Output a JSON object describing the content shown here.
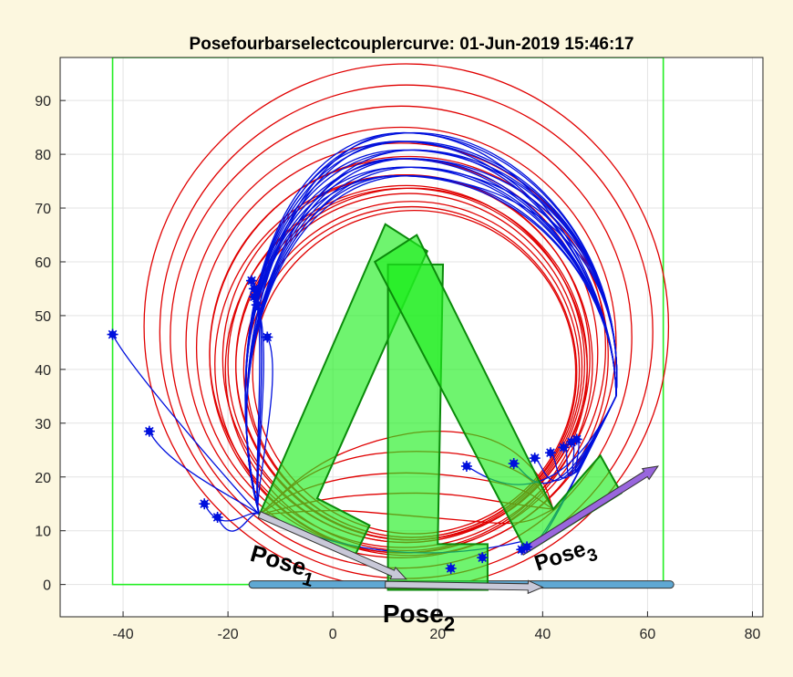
{
  "chart_data": {
    "type": "line",
    "title": "Posefourbarselectcouplercurve: 01-Jun-2019 15:46:17",
    "xlabel": "",
    "ylabel": "",
    "xlim": [
      -52,
      82
    ],
    "ylim": [
      -6,
      98
    ],
    "xticks": [
      -40,
      -20,
      0,
      20,
      40,
      60,
      80
    ],
    "yticks": [
      0,
      10,
      20,
      30,
      40,
      50,
      60,
      70,
      80,
      90
    ],
    "xtick_labels": [
      "-40",
      "-20",
      "0",
      "20",
      "40",
      "60",
      "80"
    ],
    "ytick_labels": [
      "0",
      "10",
      "20",
      "30",
      "40",
      "50",
      "60",
      "70",
      "80",
      "90"
    ],
    "grid": true,
    "colors": {
      "background": "#fcf7df",
      "axes": "#ffffff",
      "grid": "#e3e3e3",
      "coupler_red": "#e00000",
      "coupler_blue": "#0010dd",
      "pose_fill": "#22ee22",
      "pose_edge": "#0a8a0a",
      "boundary": "#22ee22",
      "arrow_fill": "#c8c8d8",
      "pose3_arrow_fill": "#9966dd",
      "bar": "#5fa8d3"
    },
    "boundary": {
      "x": [
        -42,
        63
      ],
      "y": [
        0,
        98
      ]
    },
    "red_circles": [
      {
        "cx": 14,
        "cy": 48,
        "r": 50
      },
      {
        "cx": 14,
        "cy": 47,
        "r": 47
      },
      {
        "cx": 13,
        "cy": 46,
        "r": 44
      },
      {
        "cx": 13,
        "cy": 45,
        "r": 41
      },
      {
        "cx": 13,
        "cy": 44,
        "r": 39
      },
      {
        "cx": 13.5,
        "cy": 43,
        "r": 37
      },
      {
        "cx": 14,
        "cy": 42,
        "r": 35
      },
      {
        "cx": 14,
        "cy": 41,
        "r": 34
      },
      {
        "cx": 14.5,
        "cy": 40.5,
        "r": 33
      },
      {
        "cx": 15,
        "cy": 40,
        "r": 32
      },
      {
        "cx": 15,
        "cy": 39.5,
        "r": 31.5
      },
      {
        "cx": 14,
        "cy": 40,
        "r": 34.5
      },
      {
        "cx": 13.5,
        "cy": 41,
        "r": 36
      },
      {
        "cx": 15,
        "cy": 41,
        "r": 33.5
      },
      {
        "cx": 14.5,
        "cy": 42.5,
        "r": 38
      },
      {
        "cx": 15.5,
        "cy": 39.5,
        "r": 30.8
      }
    ],
    "blue_curves": [
      {
        "end": [
          -42,
          46.5
        ]
      },
      {
        "end": [
          -35,
          28.5
        ]
      },
      {
        "end": [
          -24.5,
          15
        ]
      },
      {
        "end": [
          -22,
          12.5
        ]
      },
      {
        "end": [
          -15.5,
          56.5
        ]
      },
      {
        "end": [
          -15,
          55
        ]
      },
      {
        "end": [
          -15,
          53.5
        ]
      },
      {
        "end": [
          -14.5,
          52
        ]
      },
      {
        "end": [
          -12.5,
          46
        ]
      },
      {
        "end": [
          25.5,
          22
        ]
      },
      {
        "end": [
          34.5,
          22.5
        ]
      },
      {
        "end": [
          38.5,
          23.5
        ]
      },
      {
        "end": [
          41.5,
          24.5
        ]
      },
      {
        "end": [
          44,
          25.5
        ]
      },
      {
        "end": [
          45.5,
          26.5
        ]
      },
      {
        "end": [
          46.5,
          27
        ]
      },
      {
        "end": [
          37,
          7
        ]
      },
      {
        "end": [
          36,
          6.5
        ]
      }
    ],
    "blue_markers": [
      [
        -42,
        46.5
      ],
      [
        -35,
        28.5
      ],
      [
        -24.5,
        15
      ],
      [
        -22,
        12.5
      ],
      [
        -15.5,
        56.5
      ],
      [
        -15,
        55
      ],
      [
        -15,
        53.5
      ],
      [
        -14.5,
        52
      ],
      [
        -12.5,
        46
      ],
      [
        25.5,
        22
      ],
      [
        34.5,
        22.5
      ],
      [
        38.5,
        23.5
      ],
      [
        41.5,
        24.5
      ],
      [
        44,
        25.5
      ],
      [
        45.5,
        26.5
      ],
      [
        46.5,
        27
      ],
      [
        37,
        7
      ],
      [
        36,
        6.5
      ],
      [
        22.5,
        3
      ],
      [
        28.5,
        5
      ]
    ],
    "pose_shapes": [
      {
        "pts": [
          [
            -14,
            13
          ],
          [
            10,
            67
          ],
          [
            18,
            62
          ],
          [
            -3,
            16
          ],
          [
            7,
            11
          ],
          [
            4,
            5
          ]
        ]
      },
      {
        "pts": [
          [
            10.5,
            -1
          ],
          [
            10.5,
            59.5
          ],
          [
            21,
            59.5
          ],
          [
            20,
            7.5
          ],
          [
            29.5,
            7.5
          ],
          [
            29.5,
            -1
          ]
        ]
      },
      {
        "pts": [
          [
            8,
            60
          ],
          [
            16,
            65
          ],
          [
            42,
            14
          ],
          [
            51,
            24
          ],
          [
            55,
            17
          ],
          [
            37,
            6
          ]
        ]
      }
    ],
    "pose_arrows": [
      {
        "start": [
          -14,
          13
        ],
        "end": [
          14,
          1
        ],
        "fill": "#c8c8d8"
      },
      {
        "start": [
          10,
          0
        ],
        "end": [
          40,
          -0.5
        ],
        "fill": "#c8c8d8"
      },
      {
        "start": [
          36,
          6
        ],
        "end": [
          62,
          22
        ],
        "fill": "#9966dd"
      }
    ],
    "red_links": [
      [
        [
          -14,
          13
        ],
        [
          -8,
          17
        ],
        [
          2,
          20
        ],
        [
          14,
          21
        ],
        [
          26,
          20
        ],
        [
          36,
          18
        ],
        [
          42,
          14
        ]
      ],
      [
        [
          -14,
          13
        ],
        [
          -6,
          20
        ],
        [
          4,
          24
        ],
        [
          16,
          25
        ],
        [
          28,
          24
        ],
        [
          38,
          20
        ],
        [
          42,
          14
        ]
      ],
      [
        [
          -14,
          13
        ],
        [
          -2,
          16
        ],
        [
          10,
          17
        ],
        [
          22,
          17
        ],
        [
          34,
          15
        ],
        [
          42,
          14
        ]
      ],
      [
        [
          -14,
          13
        ],
        [
          -4,
          22
        ],
        [
          8,
          27
        ],
        [
          20,
          29
        ],
        [
          32,
          27
        ],
        [
          40,
          20
        ],
        [
          42,
          14
        ]
      ],
      [
        [
          -14,
          13
        ],
        [
          0,
          14
        ],
        [
          12,
          13
        ],
        [
          24,
          12
        ],
        [
          36,
          11
        ],
        [
          42,
          14
        ]
      ]
    ],
    "horizontal_bar": {
      "x": [
        -16,
        65
      ],
      "y": 0
    },
    "annotations": [
      {
        "label": "Pose",
        "sub": "1",
        "at": [
          -16,
          4.5
        ],
        "angle": 16,
        "size": 26
      },
      {
        "label": "Pose",
        "sub": "2",
        "at": [
          9.5,
          -7
        ],
        "angle": 0,
        "size": 28
      },
      {
        "label": "Pose",
        "sub": "3",
        "at": [
          39,
          2.5
        ],
        "angle": -18,
        "size": 24
      }
    ]
  }
}
